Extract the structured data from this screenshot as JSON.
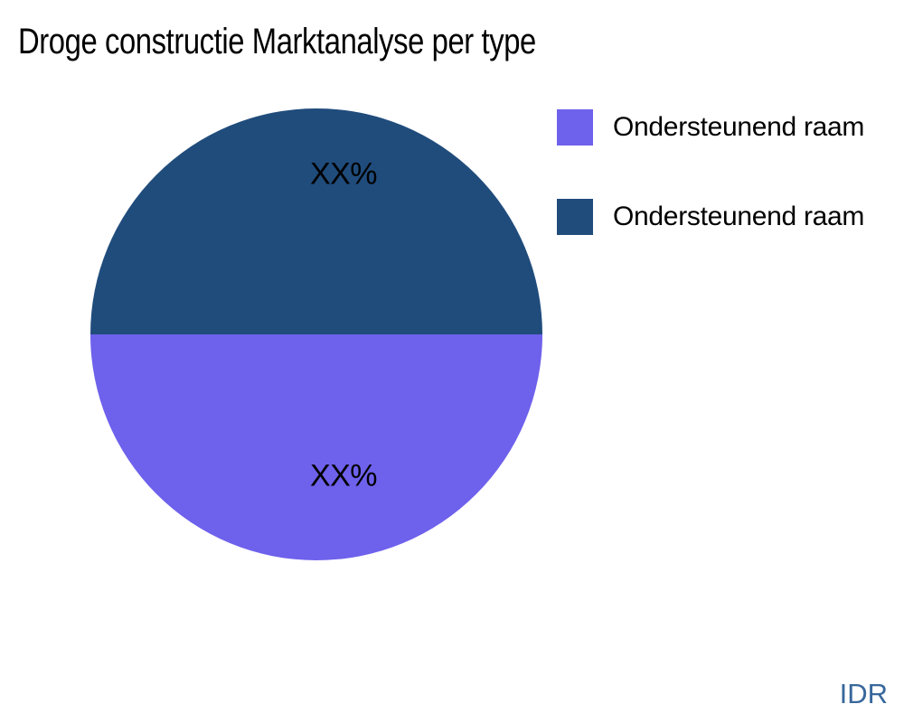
{
  "chart_data": {
    "type": "pie",
    "title": "Droge constructie Marktanalyse per type",
    "legend_position": "right",
    "slices": [
      {
        "label": "Ondersteunend raam",
        "display_label": "XX%",
        "value": 50,
        "color": "#6E61EC",
        "position": "bottom-half"
      },
      {
        "label": "Ondersteunend raam",
        "display_label": "XX%",
        "value": 50,
        "color": "#204C7C",
        "position": "top-half"
      }
    ],
    "pie": {
      "top_color": "#204C7C",
      "bottom_color": "#6E61EC"
    }
  },
  "watermark": {
    "text": "IDR",
    "color": "#38679B"
  }
}
